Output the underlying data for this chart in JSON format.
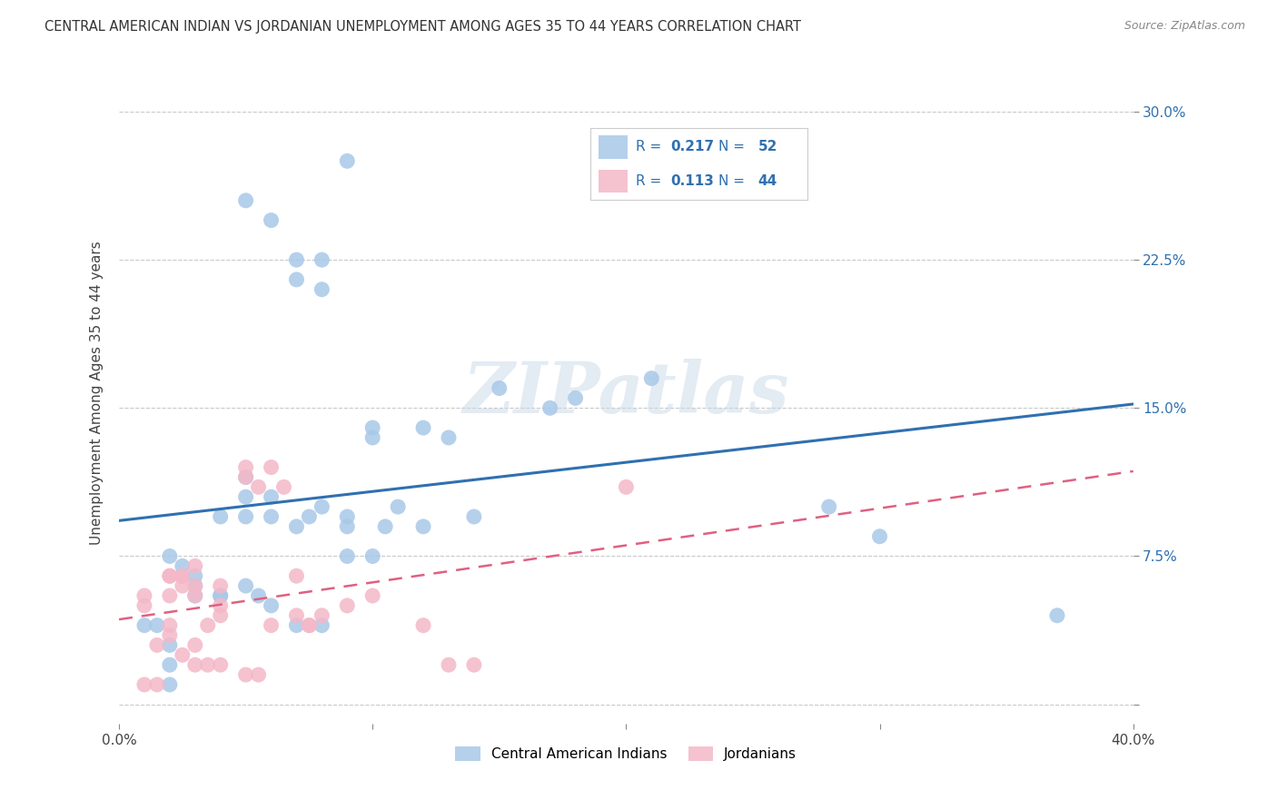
{
  "title": "CENTRAL AMERICAN INDIAN VS JORDANIAN UNEMPLOYMENT AMONG AGES 35 TO 44 YEARS CORRELATION CHART",
  "source": "Source: ZipAtlas.com",
  "ylabel": "Unemployment Among Ages 35 to 44 years",
  "xlim": [
    0.0,
    0.4
  ],
  "ylim": [
    -0.01,
    0.325
  ],
  "xticks": [
    0.0,
    0.1,
    0.2,
    0.3,
    0.4
  ],
  "xticklabels": [
    "0.0%",
    "",
    "",
    "",
    "40.0%"
  ],
  "yticks": [
    0.0,
    0.075,
    0.15,
    0.225,
    0.3
  ],
  "yticklabels": [
    "",
    "7.5%",
    "15.0%",
    "22.5%",
    "30.0%"
  ],
  "legend1_r": "0.217",
  "legend1_n": "52",
  "legend2_r": "0.113",
  "legend2_n": "44",
  "blue_color": "#a8c8e8",
  "pink_color": "#f4b8c8",
  "blue_line_color": "#3070b0",
  "pink_line_color": "#e06080",
  "legend_text_color": "#3070b0",
  "watermark": "ZIPatlas",
  "blue_scatter_x": [
    0.05,
    0.08,
    0.09,
    0.1,
    0.1,
    0.12,
    0.13,
    0.14,
    0.15,
    0.18,
    0.05,
    0.06,
    0.07,
    0.07,
    0.08,
    0.08,
    0.09,
    0.04,
    0.05,
    0.05,
    0.06,
    0.06,
    0.07,
    0.075,
    0.09,
    0.09,
    0.1,
    0.105,
    0.11,
    0.12,
    0.04,
    0.05,
    0.055,
    0.06,
    0.07,
    0.08,
    0.02,
    0.025,
    0.03,
    0.03,
    0.03,
    0.04,
    0.01,
    0.015,
    0.02,
    0.02,
    0.02,
    0.17,
    0.21,
    0.28,
    0.3,
    0.37
  ],
  "blue_scatter_y": [
    0.095,
    0.1,
    0.095,
    0.135,
    0.14,
    0.14,
    0.135,
    0.095,
    0.16,
    0.155,
    0.255,
    0.245,
    0.225,
    0.215,
    0.21,
    0.225,
    0.275,
    0.095,
    0.105,
    0.115,
    0.105,
    0.095,
    0.09,
    0.095,
    0.09,
    0.075,
    0.075,
    0.09,
    0.1,
    0.09,
    0.055,
    0.06,
    0.055,
    0.05,
    0.04,
    0.04,
    0.075,
    0.07,
    0.065,
    0.06,
    0.055,
    0.055,
    0.04,
    0.04,
    0.03,
    0.02,
    0.01,
    0.15,
    0.165,
    0.1,
    0.085,
    0.045
  ],
  "pink_scatter_x": [
    0.01,
    0.015,
    0.02,
    0.02,
    0.025,
    0.03,
    0.03,
    0.035,
    0.04,
    0.04,
    0.05,
    0.05,
    0.055,
    0.06,
    0.065,
    0.07,
    0.075,
    0.02,
    0.025,
    0.03,
    0.035,
    0.04,
    0.05,
    0.055,
    0.075,
    0.08,
    0.09,
    0.1,
    0.12,
    0.13,
    0.14,
    0.01,
    0.015,
    0.02,
    0.025,
    0.03,
    0.04,
    0.06,
    0.07,
    0.01,
    0.02,
    0.025,
    0.03,
    0.2
  ],
  "pink_scatter_y": [
    0.05,
    0.03,
    0.04,
    0.035,
    0.025,
    0.02,
    0.03,
    0.04,
    0.045,
    0.05,
    0.12,
    0.115,
    0.11,
    0.12,
    0.11,
    0.065,
    0.04,
    0.065,
    0.06,
    0.055,
    0.02,
    0.02,
    0.015,
    0.015,
    0.04,
    0.045,
    0.05,
    0.055,
    0.04,
    0.02,
    0.02,
    0.01,
    0.01,
    0.065,
    0.065,
    0.06,
    0.06,
    0.04,
    0.045,
    0.055,
    0.055,
    0.065,
    0.07,
    0.11
  ],
  "blue_trend_x": [
    0.0,
    0.4
  ],
  "blue_trend_y": [
    0.093,
    0.152
  ],
  "pink_trend_x": [
    0.0,
    0.4
  ],
  "pink_trend_y": [
    0.043,
    0.118
  ],
  "background_color": "#ffffff",
  "grid_color": "#bbbbbb"
}
